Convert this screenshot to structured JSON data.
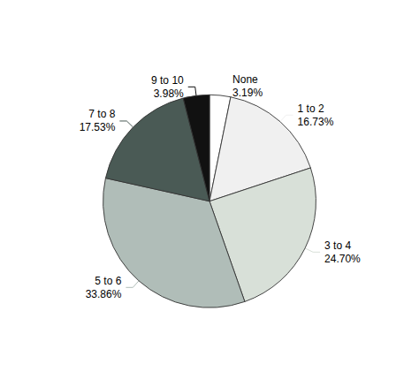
{
  "chart_data": {
    "type": "pie",
    "categories": [
      "None",
      "1 to 2",
      "3 to 4",
      "5 to 6",
      "7 to 8",
      "9 to 10"
    ],
    "values": [
      3.19,
      16.73,
      24.7,
      33.86,
      17.53,
      3.98
    ],
    "value_labels": [
      "3.19%",
      "16.73%",
      "24.70%",
      "33.86%",
      "17.53%",
      "3.98%"
    ],
    "colors": [
      "#ffffff",
      "#f0f0f0",
      "#d8e0d8",
      "#b0bdb8",
      "#4a5a55",
      "#111111"
    ],
    "data_labels": true
  }
}
